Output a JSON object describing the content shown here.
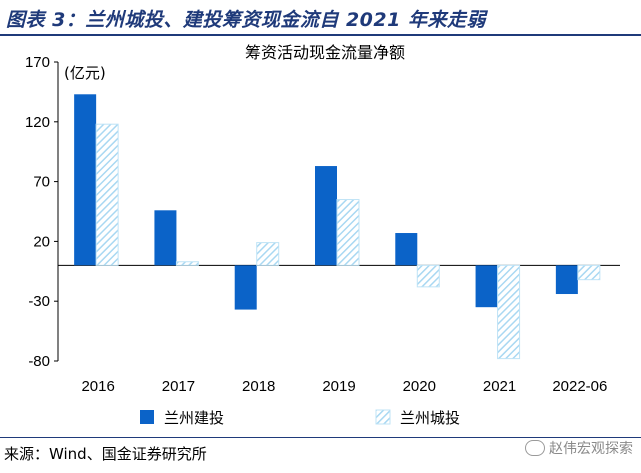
{
  "header": {
    "title": "图表 3：兰州城投、建投筹资现金流自 2021 年来走弱"
  },
  "colors": {
    "title_blue": "#1f3a7a",
    "series_jiantou": "#0b63c8",
    "series_chengtou": "#bfe3f6"
  },
  "chart_data": {
    "type": "bar",
    "title": "筹资活动现金流量净额",
    "unit_label": "(亿元)",
    "categories": [
      "2016",
      "2017",
      "2018",
      "2019",
      "2020",
      "2021",
      "2022-06"
    ],
    "series": [
      {
        "name": "兰州建投",
        "values": [
          143,
          46,
          -37,
          83,
          27,
          -35,
          -24
        ],
        "style": "solid"
      },
      {
        "name": "兰州城投",
        "values": [
          118,
          3,
          19,
          55,
          -18,
          -78,
          -12
        ],
        "style": "hatched"
      }
    ],
    "yticks": [
      170,
      120,
      70,
      20,
      -30,
      -80
    ],
    "ylim": [
      -80,
      170
    ],
    "grid": false,
    "legend_position": "bottom"
  },
  "footer": {
    "source": "来源：Wind、国金证券研究所",
    "watermark": "赵伟宏观探索"
  }
}
